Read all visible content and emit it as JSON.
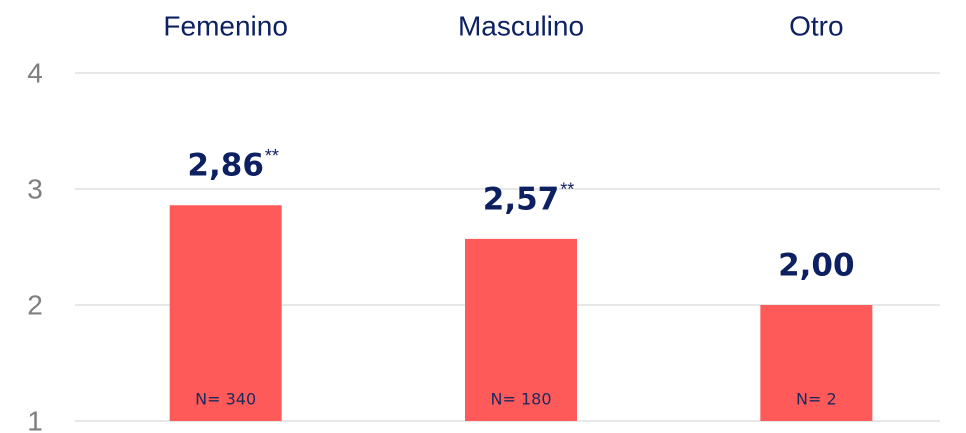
{
  "chart_data": {
    "type": "bar",
    "categories": [
      "Femenino",
      "Masculino",
      "Otro"
    ],
    "values": [
      2.86,
      2.57,
      2.0
    ],
    "value_labels": [
      "2,86",
      "2,57",
      "2,00"
    ],
    "value_annotations": [
      "**",
      "**",
      null
    ],
    "sample_labels": [
      "N= 340",
      "N= 180",
      "N= 2"
    ],
    "color": "#ff5a5a",
    "ylim": [
      1,
      4
    ],
    "yticks": [
      1,
      2,
      3,
      4
    ],
    "grid": true
  }
}
